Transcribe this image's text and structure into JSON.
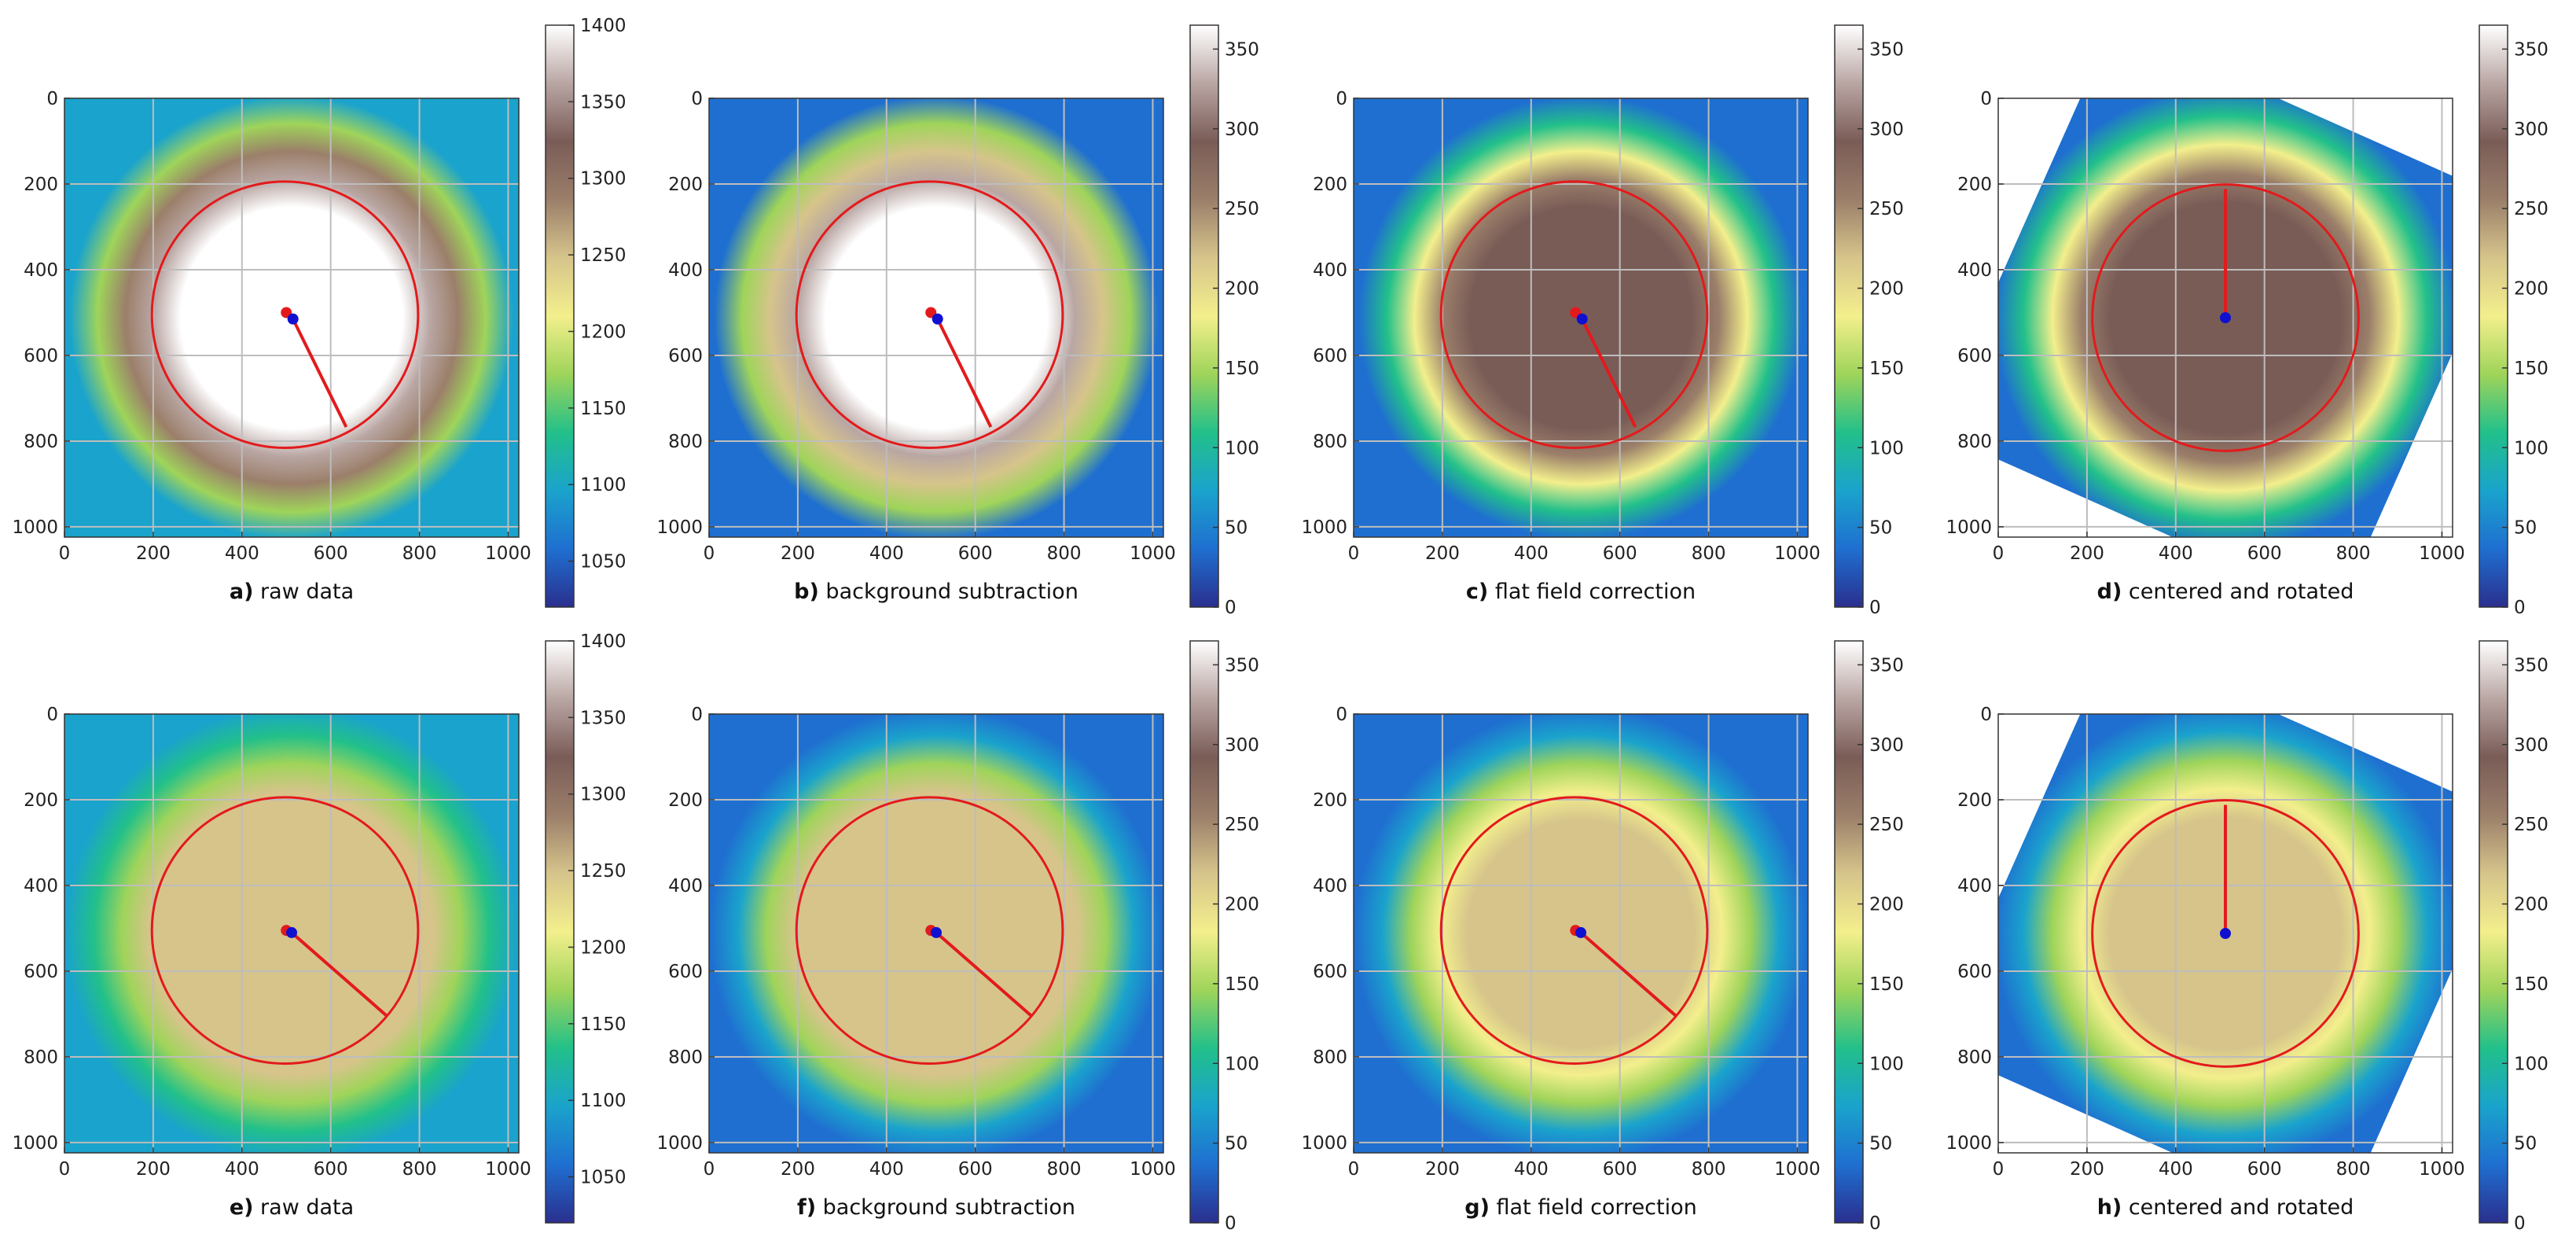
{
  "figure": {
    "colormap": [
      "#2a2f8e",
      "#1f6fd0",
      "#1aa3cc",
      "#22c08a",
      "#9fd45a",
      "#f3ef8c",
      "#d6c48b",
      "#9b7f6a",
      "#7a5c57",
      "#b9a6a3",
      "#ffffff"
    ],
    "accent_circle": "#e31a1c",
    "accent_center": "#1010d0"
  },
  "chart_data": [
    {
      "id": "a",
      "type": "heatmap",
      "letter": "a)",
      "caption": "raw data",
      "xlim": [
        0,
        1024
      ],
      "ylim": [
        1024,
        0
      ],
      "xticks": [
        "0",
        "200",
        "400",
        "600",
        "800",
        "1000"
      ],
      "yticks": [
        "0",
        "200",
        "400",
        "600",
        "800",
        "1000"
      ],
      "colorbar": {
        "min": 1020,
        "max": 1400,
        "ticks": [
          "1050",
          "1100",
          "1150",
          "1200",
          "1250",
          "1300",
          "1350",
          "1400"
        ],
        "tick_values": [
          1050,
          1100,
          1150,
          1200,
          1250,
          1300,
          1350,
          1400
        ]
      },
      "image": {
        "background": 0.15,
        "disk_radius": 500,
        "plateau": 0.98,
        "rotated": false
      },
      "circle": {
        "cx": 497,
        "cy": 505,
        "r": 300
      },
      "center_red": [
        500,
        500
      ],
      "center_blue": [
        515,
        515
      ],
      "radius_line_end": [
        635,
        767
      ]
    },
    {
      "id": "b",
      "type": "heatmap",
      "letter": "b)",
      "caption": "background subtraction",
      "xlim": [
        0,
        1024
      ],
      "ylim": [
        1024,
        0
      ],
      "xticks": [
        "0",
        "200",
        "400",
        "600",
        "800",
        "1000"
      ],
      "yticks": [
        "0",
        "200",
        "400",
        "600",
        "800",
        "1000"
      ],
      "colorbar": {
        "min": 0,
        "max": 365,
        "ticks": [
          "0",
          "50",
          "100",
          "150",
          "200",
          "250",
          "300",
          "350"
        ],
        "tick_values": [
          0,
          50,
          100,
          150,
          200,
          250,
          300,
          350
        ]
      },
      "image": {
        "background": 0.06,
        "disk_radius": 500,
        "plateau": 0.98,
        "rotated": false
      },
      "circle": {
        "cx": 497,
        "cy": 505,
        "r": 300
      },
      "center_red": [
        500,
        500
      ],
      "center_blue": [
        515,
        515
      ],
      "radius_line_end": [
        635,
        767
      ]
    },
    {
      "id": "c",
      "type": "heatmap",
      "letter": "c)",
      "caption": "flat field correction",
      "xlim": [
        0,
        1024
      ],
      "ylim": [
        1024,
        0
      ],
      "xticks": [
        "0",
        "200",
        "400",
        "600",
        "800",
        "1000"
      ],
      "yticks": [
        "0",
        "200",
        "400",
        "600",
        "800",
        "1000"
      ],
      "colorbar": {
        "min": 0,
        "max": 365,
        "ticks": [
          "0",
          "50",
          "100",
          "150",
          "200",
          "250",
          "300",
          "350"
        ],
        "tick_values": [
          0,
          50,
          100,
          150,
          200,
          250,
          300,
          350
        ]
      },
      "image": {
        "background": 0.06,
        "disk_radius": 500,
        "plateau": 0.84,
        "rotated": false
      },
      "circle": {
        "cx": 497,
        "cy": 505,
        "r": 300
      },
      "center_red": [
        500,
        500
      ],
      "center_blue": [
        515,
        515
      ],
      "radius_line_end": [
        635,
        767
      ]
    },
    {
      "id": "d",
      "type": "heatmap",
      "letter": "d)",
      "caption": "centered and rotated",
      "xlim": [
        0,
        1024
      ],
      "ylim": [
        1024,
        0
      ],
      "xticks": [
        "0",
        "200",
        "400",
        "600",
        "800",
        "1000"
      ],
      "yticks": [
        "0",
        "200",
        "400",
        "600",
        "800",
        "1000"
      ],
      "colorbar": {
        "min": 0,
        "max": 365,
        "ticks": [
          "0",
          "50",
          "100",
          "150",
          "200",
          "250",
          "300",
          "350"
        ],
        "tick_values": [
          0,
          50,
          100,
          150,
          200,
          250,
          300,
          350
        ]
      },
      "image": {
        "background": 0.06,
        "disk_radius": 520,
        "plateau": 0.84,
        "rotated": true
      },
      "circle": {
        "cx": 512,
        "cy": 512,
        "r": 300
      },
      "center_red": null,
      "center_blue": [
        512,
        512
      ],
      "radius_line_end": [
        512,
        212
      ]
    },
    {
      "id": "e",
      "type": "heatmap",
      "letter": "e)",
      "caption": "raw data",
      "xlim": [
        0,
        1024
      ],
      "ylim": [
        1024,
        0
      ],
      "xticks": [
        "0",
        "200",
        "400",
        "600",
        "800",
        "1000"
      ],
      "yticks": [
        "0",
        "200",
        "400",
        "600",
        "800",
        "1000"
      ],
      "colorbar": {
        "min": 1020,
        "max": 1400,
        "ticks": [
          "1050",
          "1100",
          "1150",
          "1200",
          "1250",
          "1300",
          "1350",
          "1400"
        ],
        "tick_values": [
          1050,
          1100,
          1150,
          1200,
          1250,
          1300,
          1350,
          1400
        ]
      },
      "image": {
        "background": 0.15,
        "disk_radius": 510,
        "plateau": 0.62,
        "rotated": false
      },
      "circle": {
        "cx": 497,
        "cy": 505,
        "r": 300
      },
      "center_red": [
        500,
        505
      ],
      "center_blue": [
        512,
        510
      ],
      "radius_line_end": [
        725,
        703
      ]
    },
    {
      "id": "f",
      "type": "heatmap",
      "letter": "f)",
      "caption": "background subtraction",
      "xlim": [
        0,
        1024
      ],
      "ylim": [
        1024,
        0
      ],
      "xticks": [
        "0",
        "200",
        "400",
        "600",
        "800",
        "1000"
      ],
      "yticks": [
        "0",
        "200",
        "400",
        "600",
        "800",
        "1000"
      ],
      "colorbar": {
        "min": 0,
        "max": 365,
        "ticks": [
          "0",
          "50",
          "100",
          "150",
          "200",
          "250",
          "300",
          "350"
        ],
        "tick_values": [
          0,
          50,
          100,
          150,
          200,
          250,
          300,
          350
        ]
      },
      "image": {
        "background": 0.06,
        "disk_radius": 510,
        "plateau": 0.62,
        "rotated": false
      },
      "circle": {
        "cx": 497,
        "cy": 505,
        "r": 300
      },
      "center_red": [
        500,
        505
      ],
      "center_blue": [
        512,
        510
      ],
      "radius_line_end": [
        725,
        703
      ]
    },
    {
      "id": "g",
      "type": "heatmap",
      "letter": "g)",
      "caption": "flat field correction",
      "xlim": [
        0,
        1024
      ],
      "ylim": [
        1024,
        0
      ],
      "xticks": [
        "0",
        "200",
        "400",
        "600",
        "800",
        "1000"
      ],
      "yticks": [
        "0",
        "200",
        "400",
        "600",
        "800",
        "1000"
      ],
      "colorbar": {
        "min": 0,
        "max": 365,
        "ticks": [
          "0",
          "50",
          "100",
          "150",
          "200",
          "250",
          "300",
          "350"
        ],
        "tick_values": [
          0,
          50,
          100,
          150,
          200,
          250,
          300,
          350
        ]
      },
      "image": {
        "background": 0.06,
        "disk_radius": 510,
        "plateau": 0.57,
        "rotated": false
      },
      "circle": {
        "cx": 497,
        "cy": 505,
        "r": 300
      },
      "center_red": [
        500,
        505
      ],
      "center_blue": [
        512,
        510
      ],
      "radius_line_end": [
        725,
        703
      ]
    },
    {
      "id": "h",
      "type": "heatmap",
      "letter": "h)",
      "caption": "centered and rotated",
      "xlim": [
        0,
        1024
      ],
      "ylim": [
        1024,
        0
      ],
      "xticks": [
        "0",
        "200",
        "400",
        "600",
        "800",
        "1000"
      ],
      "yticks": [
        "0",
        "200",
        "400",
        "600",
        "800",
        "1000"
      ],
      "colorbar": {
        "min": 0,
        "max": 365,
        "ticks": [
          "0",
          "50",
          "100",
          "150",
          "200",
          "250",
          "300",
          "350"
        ],
        "tick_values": [
          0,
          50,
          100,
          150,
          200,
          250,
          300,
          350
        ]
      },
      "image": {
        "background": 0.06,
        "disk_radius": 520,
        "plateau": 0.57,
        "rotated": true
      },
      "circle": {
        "cx": 512,
        "cy": 512,
        "r": 300
      },
      "center_red": null,
      "center_blue": [
        512,
        512
      ],
      "radius_line_end": [
        512,
        212
      ]
    }
  ]
}
